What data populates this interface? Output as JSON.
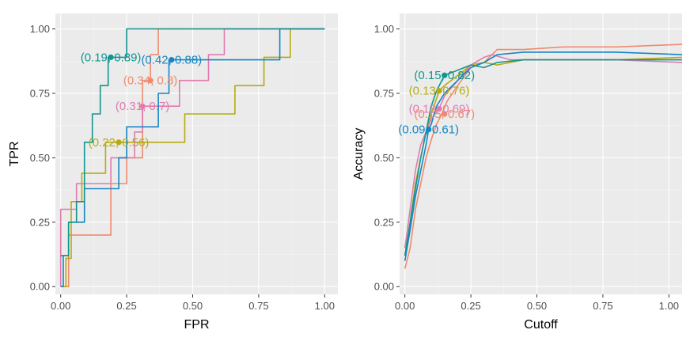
{
  "colors": {
    "red": "#F08A6E",
    "gold": "#B5AB10",
    "teal": "#12958F",
    "blue": "#1586C4",
    "pink": "#E27AB0"
  },
  "chart_data": [
    {
      "type": "line",
      "title": "",
      "xlabel": "FPR",
      "ylabel": "TPR",
      "xlim": [
        -0.02,
        1.05
      ],
      "ylim": [
        -0.03,
        1.06
      ],
      "xticks": [
        "0.00",
        "0.25",
        "0.50",
        "0.75",
        "1.00"
      ],
      "yticks": [
        "0.00",
        "0.25",
        "0.50",
        "0.75",
        "1.00"
      ],
      "grid": true,
      "series": [
        {
          "name": "red",
          "color": "#F08A6E",
          "step": true,
          "x": [
            0,
            0.03,
            0.03,
            0.19,
            0.19,
            0.25,
            0.25,
            0.31,
            0.31,
            0.34,
            0.34,
            0.37,
            0.37,
            0.46,
            0.46,
            0.5,
            0.5,
            0.84,
            0.84,
            1.0
          ],
          "y": [
            0,
            0,
            0.2,
            0.2,
            0.4,
            0.4,
            0.5,
            0.5,
            0.8,
            0.8,
            0.9,
            0.9,
            1.0,
            1.0,
            1.0,
            1.0,
            1.0,
            1.0,
            1.0,
            1.0
          ]
        },
        {
          "name": "gold",
          "color": "#B5AB10",
          "step": true,
          "x": [
            0,
            0.02,
            0.02,
            0.04,
            0.04,
            0.08,
            0.08,
            0.17,
            0.17,
            0.22,
            0.22,
            0.47,
            0.47,
            0.66,
            0.66,
            0.77,
            0.77,
            0.87,
            0.87,
            1.0
          ],
          "y": [
            0,
            0,
            0.11,
            0.11,
            0.33,
            0.33,
            0.44,
            0.44,
            0.56,
            0.56,
            0.56,
            0.56,
            0.67,
            0.67,
            0.78,
            0.78,
            0.89,
            0.89,
            1.0,
            1.0
          ],
          "highlight": {
            "x": 0.22,
            "y": 0.56,
            "label": "(0.22, 0.56)"
          }
        },
        {
          "name": "pink",
          "color": "#E27AB0",
          "step": true,
          "x": [
            0,
            0.0,
            0.06,
            0.06,
            0.19,
            0.19,
            0.28,
            0.28,
            0.31,
            0.31,
            0.45,
            0.45,
            0.56,
            0.56,
            0.62,
            0.62,
            0.88,
            0.88,
            1.0
          ],
          "y": [
            0,
            0.3,
            0.3,
            0.4,
            0.4,
            0.5,
            0.5,
            0.6,
            0.6,
            0.7,
            0.7,
            0.8,
            0.8,
            0.9,
            0.9,
            1.0,
            1.0,
            1.0,
            1.0
          ],
          "highlight": {
            "x": 0.31,
            "y": 0.7,
            "label": "(0.31, 0.7)"
          }
        },
        {
          "name": "blue",
          "color": "#1586C4",
          "step": true,
          "x": [
            0,
            0.01,
            0.01,
            0.03,
            0.03,
            0.09,
            0.09,
            0.22,
            0.22,
            0.25,
            0.25,
            0.28,
            0.28,
            0.37,
            0.37,
            0.41,
            0.41,
            0.42,
            0.42,
            0.83,
            0.83,
            1.0
          ],
          "y": [
            0,
            0,
            0.12,
            0.12,
            0.25,
            0.25,
            0.38,
            0.38,
            0.5,
            0.5,
            0.62,
            0.62,
            0.62,
            0.62,
            0.75,
            0.75,
            0.88,
            0.88,
            0.88,
            0.88,
            1.0,
            1.0
          ],
          "highlight": {
            "x": 0.42,
            "y": 0.88,
            "label": "(0.42, 0.88)"
          }
        },
        {
          "name": "teal",
          "color": "#12958F",
          "step": true,
          "x": [
            0,
            0.0,
            0.03,
            0.03,
            0.06,
            0.06,
            0.09,
            0.09,
            0.12,
            0.12,
            0.15,
            0.15,
            0.18,
            0.18,
            0.19,
            0.19,
            0.25,
            0.25,
            0.75,
            0.75,
            1.0
          ],
          "y": [
            0.12,
            0.12,
            0.12,
            0.25,
            0.25,
            0.33,
            0.33,
            0.56,
            0.56,
            0.67,
            0.67,
            0.78,
            0.78,
            0.89,
            0.89,
            0.89,
            0.89,
            1.0,
            1.0,
            1.0,
            1.0
          ],
          "highlight": {
            "x": 0.19,
            "y": 0.89,
            "label": "(0.19, 0.89)"
          }
        }
      ],
      "extra_highlight": {
        "series": "red",
        "x": 0.34,
        "y": 0.8,
        "label": "(0.34, 0.8)"
      }
    },
    {
      "type": "line",
      "title": "",
      "xlabel": "Cutoff",
      "ylabel": "Accuracy",
      "xlim": [
        -0.02,
        1.05
      ],
      "ylim": [
        -0.03,
        1.06
      ],
      "xticks": [
        "0.00",
        "0.25",
        "0.50",
        "0.75",
        "1.00"
      ],
      "yticks": [
        "0.00",
        "0.25",
        "0.50",
        "0.75",
        "1.00"
      ],
      "grid": true,
      "series": [
        {
          "name": "red",
          "color": "#F08A6E",
          "x": [
            0.0,
            0.02,
            0.04,
            0.06,
            0.08,
            0.1,
            0.12,
            0.14,
            0.16,
            0.2,
            0.25,
            0.3,
            0.35,
            0.45,
            0.6,
            0.8,
            1.05
          ],
          "y": [
            0.07,
            0.15,
            0.3,
            0.4,
            0.5,
            0.57,
            0.63,
            0.67,
            0.72,
            0.78,
            0.85,
            0.87,
            0.92,
            0.92,
            0.93,
            0.93,
            0.94
          ],
          "highlight": {
            "x": 0.15,
            "y": 0.67,
            "label": "(0.15, 0.67)"
          }
        },
        {
          "name": "gold",
          "color": "#B5AB10",
          "x": [
            0.0,
            0.02,
            0.04,
            0.06,
            0.08,
            0.1,
            0.12,
            0.13,
            0.15,
            0.2,
            0.25,
            0.3,
            0.35,
            0.45,
            0.6,
            0.8,
            1.05
          ],
          "y": [
            0.12,
            0.25,
            0.4,
            0.5,
            0.6,
            0.67,
            0.73,
            0.76,
            0.78,
            0.82,
            0.86,
            0.87,
            0.86,
            0.88,
            0.88,
            0.88,
            0.89
          ],
          "highlight": {
            "x": 0.13,
            "y": 0.76,
            "label": "(0.13, 0.76)"
          }
        },
        {
          "name": "pink",
          "color": "#E27AB0",
          "x": [
            0.0,
            0.02,
            0.04,
            0.06,
            0.08,
            0.1,
            0.12,
            0.13,
            0.15,
            0.2,
            0.25,
            0.3,
            0.33,
            0.4,
            0.6,
            0.8,
            1.05
          ],
          "y": [
            0.15,
            0.3,
            0.45,
            0.55,
            0.6,
            0.65,
            0.68,
            0.69,
            0.74,
            0.8,
            0.86,
            0.89,
            0.9,
            0.88,
            0.88,
            0.88,
            0.87
          ],
          "highlight": {
            "x": 0.13,
            "y": 0.69,
            "label": "(0.13, 0.69)"
          }
        },
        {
          "name": "blue",
          "color": "#1586C4",
          "x": [
            0.0,
            0.02,
            0.04,
            0.06,
            0.08,
            0.09,
            0.1,
            0.12,
            0.15,
            0.2,
            0.25,
            0.3,
            0.35,
            0.45,
            0.6,
            0.8,
            1.05
          ],
          "y": [
            0.1,
            0.22,
            0.35,
            0.45,
            0.55,
            0.61,
            0.63,
            0.7,
            0.75,
            0.8,
            0.85,
            0.87,
            0.9,
            0.91,
            0.91,
            0.91,
            0.9
          ],
          "highlight": {
            "x": 0.09,
            "y": 0.61,
            "label": "(0.09, 0.61)"
          }
        },
        {
          "name": "teal",
          "color": "#12958F",
          "x": [
            0.0,
            0.02,
            0.04,
            0.06,
            0.08,
            0.1,
            0.12,
            0.15,
            0.2,
            0.25,
            0.3,
            0.35,
            0.45,
            0.6,
            0.8,
            1.05
          ],
          "y": [
            0.12,
            0.25,
            0.38,
            0.5,
            0.6,
            0.7,
            0.76,
            0.82,
            0.84,
            0.86,
            0.85,
            0.87,
            0.88,
            0.88,
            0.88,
            0.88
          ],
          "highlight": {
            "x": 0.15,
            "y": 0.82,
            "label": "(0.15, 0.82)"
          }
        }
      ]
    }
  ]
}
